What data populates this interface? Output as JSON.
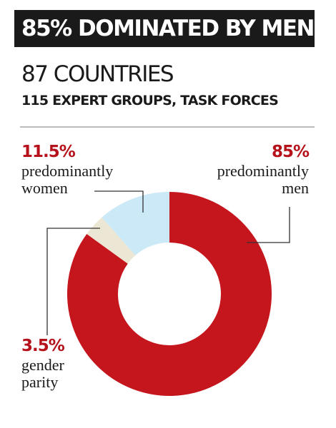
{
  "chart_data": {
    "type": "donut",
    "title": "85% DOMINATED BY MEN",
    "subtitle": "87 COUNTRIES",
    "caption": "115 EXPERT GROUPS, TASK FORCES",
    "categories": [
      "predominantly men",
      "gender parity",
      "predominantly women"
    ],
    "values": [
      85,
      3.5,
      11.5
    ],
    "value_labels": [
      "85%",
      "3.5%",
      "11.5%"
    ],
    "colors": [
      "#c4161c",
      "#ece6d4",
      "#cbe9f7"
    ]
  }
}
